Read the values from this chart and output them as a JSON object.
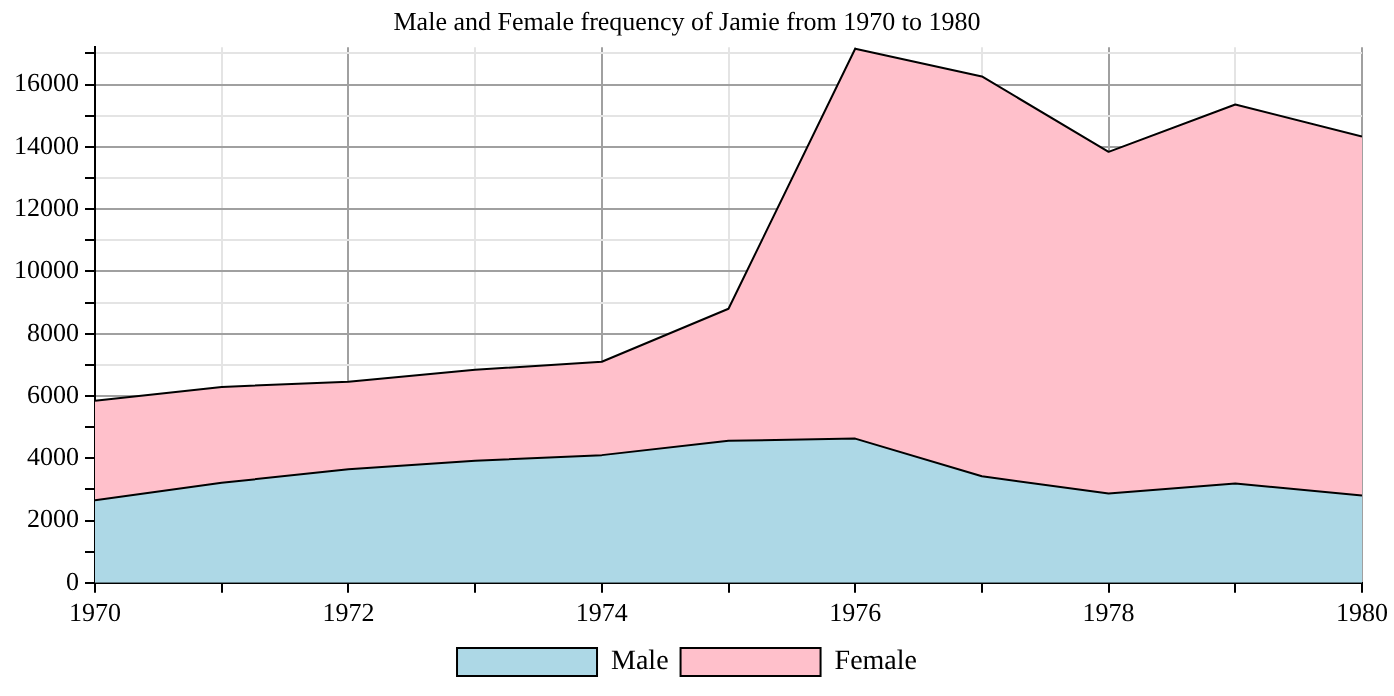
{
  "chart_data": {
    "type": "area",
    "title": "Male and Female frequency of Jamie from 1970 to 1980",
    "stacked": true,
    "x": [
      1970,
      1971,
      1972,
      1973,
      1974,
      1975,
      1976,
      1977,
      1978,
      1979,
      1980
    ],
    "series": [
      {
        "name": "Male",
        "color": "#add8e6",
        "values": [
          2650,
          3210,
          3650,
          3920,
          4100,
          4560,
          4630,
          3420,
          2870,
          3190,
          2800
        ]
      },
      {
        "name": "Female",
        "color": "#ffc0cb",
        "values": [
          3200,
          3080,
          2810,
          2920,
          3000,
          4240,
          12520,
          12840,
          10970,
          12170,
          11530
        ]
      }
    ],
    "xlim": [
      1970,
      1980
    ],
    "xticks": [
      1970,
      {
        "value": 1971,
        "label": null
      },
      1972,
      {
        "value": 1973,
        "label": null
      },
      1974,
      {
        "value": 1975,
        "label": null
      },
      1976,
      {
        "value": 1977,
        "label": null
      },
      1978,
      {
        "value": 1979,
        "label": null
      },
      1980
    ],
    "ylim": [
      0,
      17200
    ],
    "yticks": [
      0,
      {
        "value": 1000,
        "label": null
      },
      2000,
      {
        "value": 3000,
        "label": null
      },
      4000,
      {
        "value": 5000,
        "label": null
      },
      6000,
      {
        "value": 7000,
        "label": null
      },
      8000,
      {
        "value": 9000,
        "label": null
      },
      10000,
      {
        "value": 11000,
        "label": null
      },
      12000,
      {
        "value": 13000,
        "label": null
      },
      14000,
      {
        "value": 15000,
        "label": null
      },
      16000,
      {
        "value": 17000,
        "label": null
      }
    ],
    "grid": true,
    "legend": "bottom",
    "line_style": "solid",
    "marker": "none"
  }
}
